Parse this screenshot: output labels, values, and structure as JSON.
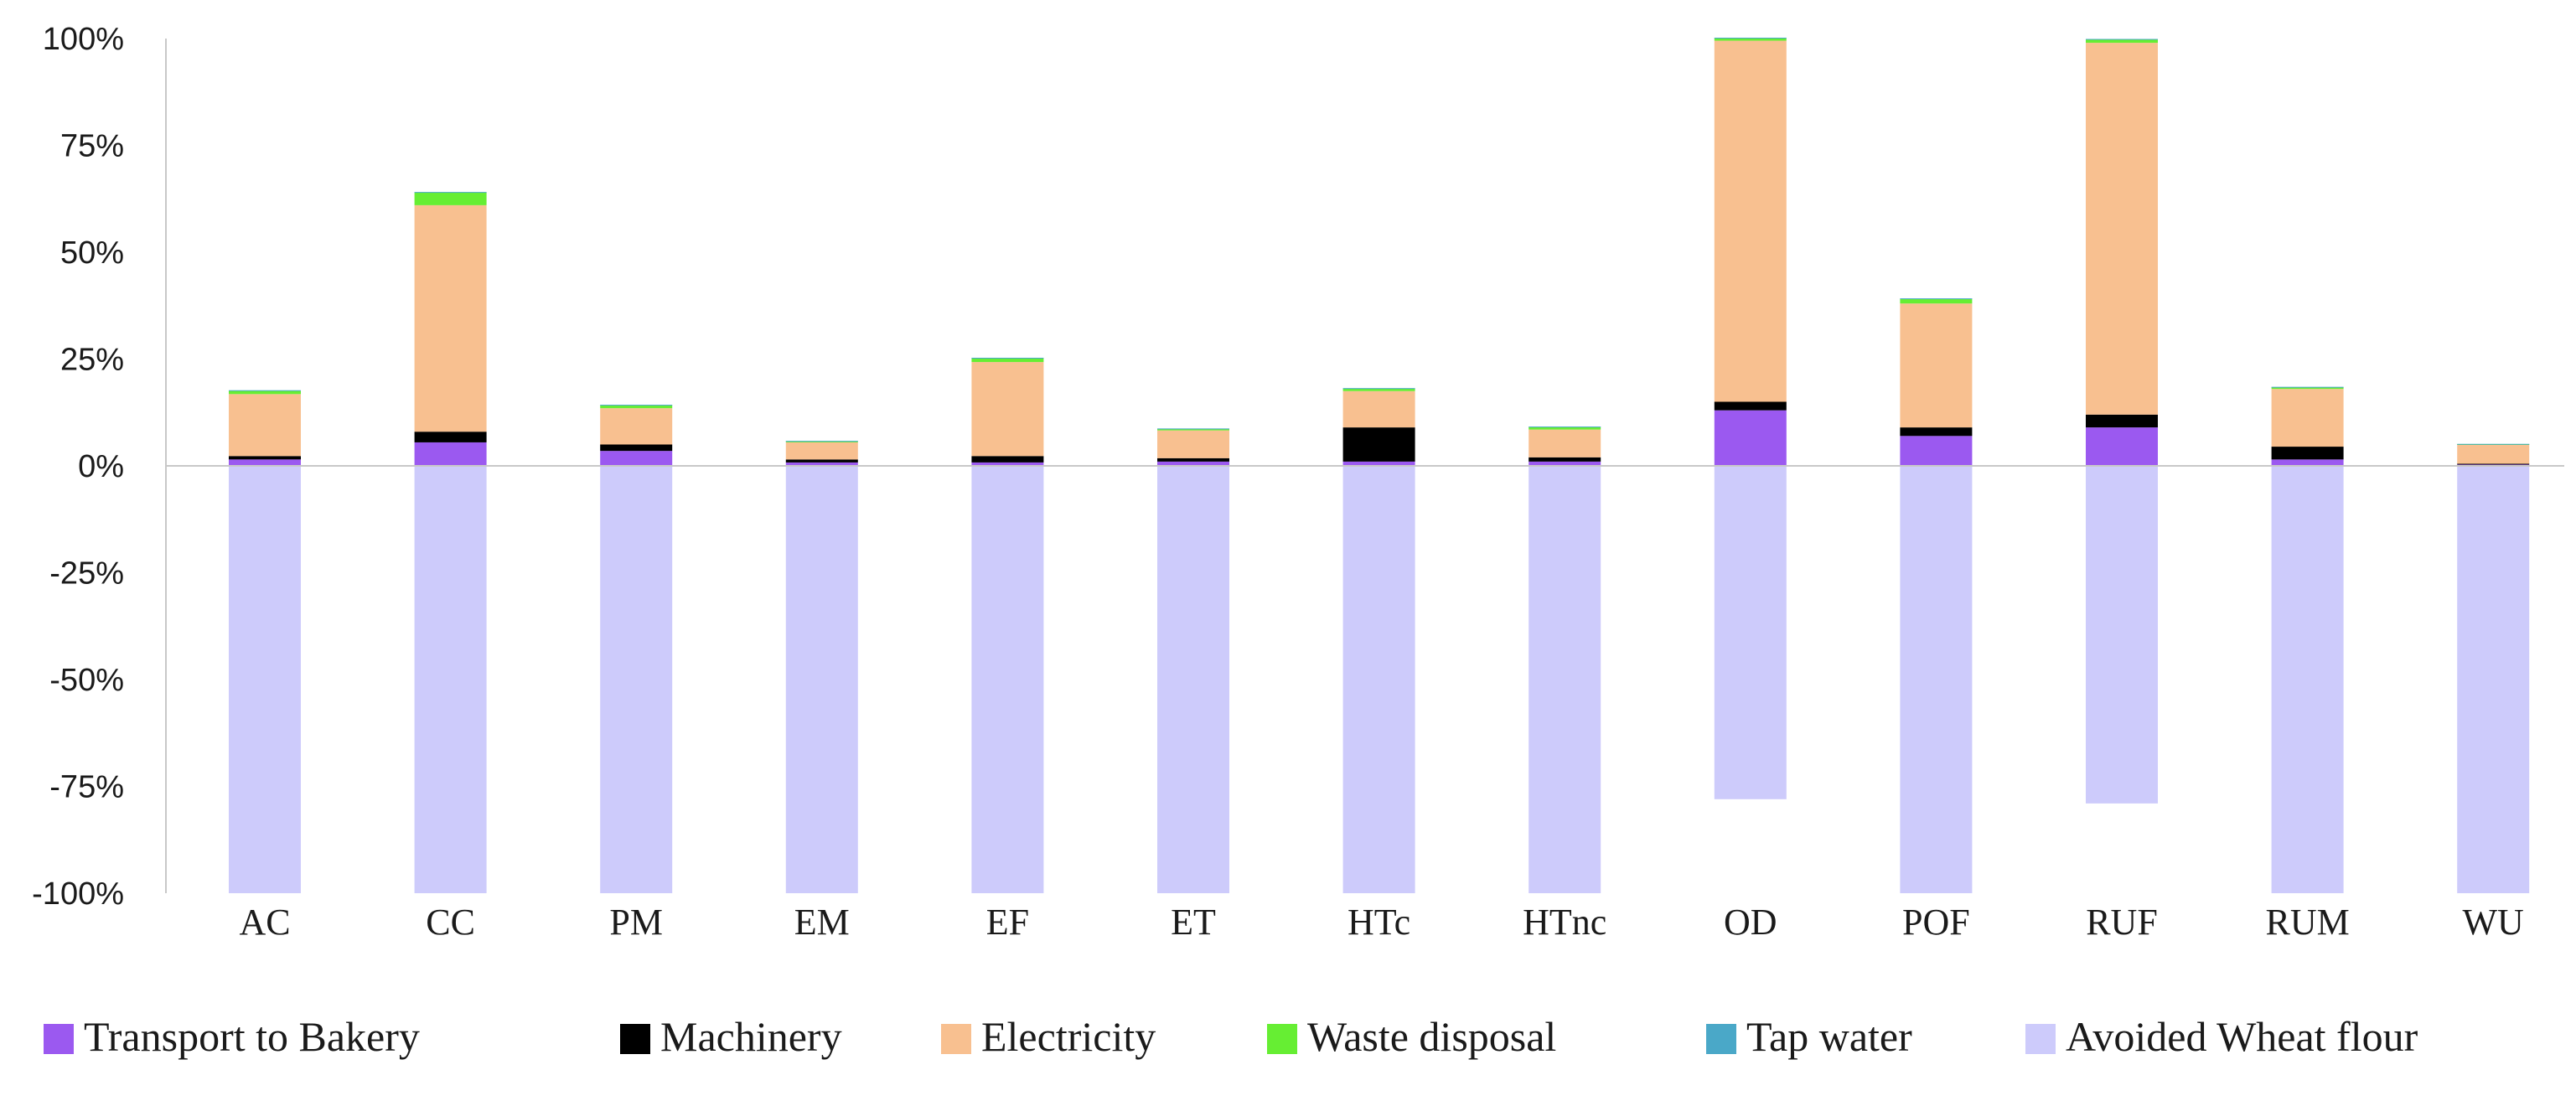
{
  "chart_data": {
    "type": "bar",
    "stacked": true,
    "title": "",
    "xlabel": "",
    "ylabel": "",
    "ylim": [
      -100,
      100
    ],
    "yticks": [
      100,
      75,
      50,
      25,
      0,
      -25,
      -50,
      -75,
      -100
    ],
    "ytick_labels": [
      "100%",
      "75%",
      "50%",
      "25%",
      "0%",
      "-25%",
      "-50%",
      "-75%",
      "-100%"
    ],
    "categories": [
      "AC",
      "CC",
      "PM",
      "EM",
      "EF",
      "ET",
      "HTc",
      "HTnc",
      "OD",
      "POF",
      "RUF",
      "RUM",
      "WU"
    ],
    "legend_position": "bottom",
    "series": [
      {
        "name": "Transport to Bakery",
        "color": "#9b59f0",
        "values": [
          1.5,
          5.5,
          3.5,
          0.8,
          0.8,
          1.0,
          1.0,
          1.0,
          13.0,
          7.0,
          9.0,
          1.5,
          0.3
        ]
      },
      {
        "name": "Machinery",
        "color": "#000000",
        "values": [
          0.8,
          2.5,
          1.5,
          0.7,
          1.5,
          0.8,
          8.0,
          1.0,
          2.0,
          2.0,
          3.0,
          3.0,
          0.2
        ]
      },
      {
        "name": "Electricity",
        "color": "#f8c090",
        "values": [
          14.5,
          53.0,
          8.5,
          4.0,
          22.0,
          6.5,
          8.5,
          6.5,
          84.5,
          29.0,
          87.0,
          13.5,
          4.5
        ]
      },
      {
        "name": "Waste disposal",
        "color": "#66ee33",
        "values": [
          0.8,
          3.0,
          0.7,
          0.3,
          0.9,
          0.4,
          0.6,
          0.6,
          0.6,
          1.1,
          0.8,
          0.4,
          0.1
        ]
      },
      {
        "name": "Tap water",
        "color": "#4aa8c8",
        "values": [
          0.1,
          0.1,
          0.1,
          0.05,
          0.1,
          0.05,
          0.1,
          0.1,
          0.1,
          0.1,
          0.1,
          0.1,
          0.05
        ]
      },
      {
        "name": "Avoided Wheat flour",
        "color": "#cdcbfb",
        "values": [
          -100,
          -100,
          -100,
          -100,
          -100,
          -100,
          -100,
          -100,
          -78,
          -100,
          -79,
          -100,
          -100
        ]
      }
    ]
  }
}
